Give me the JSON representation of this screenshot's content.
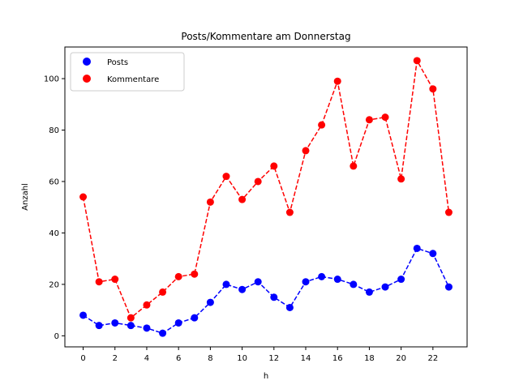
{
  "chart_data": {
    "type": "line",
    "title": "Posts/Kommentare am Donnerstag",
    "xlabel": "h",
    "ylabel": "Anzahl",
    "x": [
      0,
      1,
      2,
      3,
      4,
      5,
      6,
      7,
      8,
      9,
      10,
      11,
      12,
      13,
      14,
      15,
      16,
      17,
      18,
      19,
      20,
      21,
      22,
      23
    ],
    "xlim": [
      -1.15,
      24.15
    ],
    "ylim": [
      -4.3,
      112.3
    ],
    "xticks": [
      0,
      2,
      4,
      6,
      8,
      10,
      12,
      14,
      16,
      18,
      20,
      22
    ],
    "yticks": [
      0,
      20,
      40,
      60,
      80,
      100
    ],
    "grid": false,
    "legend_position": "top-left",
    "series": [
      {
        "name": "Posts",
        "color": "#0000ff",
        "line_style": "dashed",
        "marker": "circle",
        "values": [
          8,
          4,
          5,
          4,
          3,
          1,
          5,
          7,
          13,
          20,
          18,
          21,
          15,
          11,
          21,
          23,
          22,
          20,
          17,
          19,
          22,
          34,
          32,
          19
        ]
      },
      {
        "name": "Kommentare",
        "color": "#ff0000",
        "line_style": "dashed",
        "marker": "circle",
        "values": [
          54,
          21,
          22,
          7,
          12,
          17,
          23,
          24,
          52,
          62,
          53,
          60,
          66,
          48,
          72,
          82,
          99,
          66,
          84,
          85,
          61,
          107,
          96,
          48
        ]
      }
    ]
  }
}
